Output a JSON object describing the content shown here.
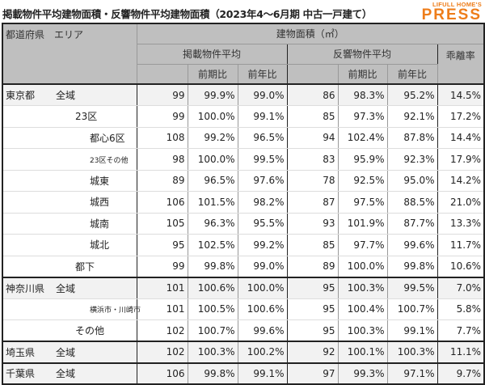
{
  "title": "掲載物件平均建物面積・反響物件平均建物面積（2023年4～6月期 中古一戸建て）",
  "logo": {
    "line1": "LIFULL HOME'S",
    "line2": "PRESS",
    "color": "#ee7d1a"
  },
  "header": {
    "region": "都道府県　エリア",
    "area": "建物面積（㎡）",
    "listed": "掲載物件平均",
    "response": "反響物件平均",
    "gap": "乖離率",
    "qoq": "前期比",
    "yoy": "前年比"
  },
  "rows": [
    {
      "pref": "東京都",
      "area": "全域",
      "level": 0,
      "v": [
        "99",
        "99.9%",
        "99.0%",
        "86",
        "98.3%",
        "95.2%",
        "14.5%"
      ]
    },
    {
      "pref": "",
      "area": "23区",
      "level": 1,
      "v": [
        "99",
        "100.0%",
        "99.1%",
        "85",
        "97.3%",
        "92.1%",
        "17.2%"
      ]
    },
    {
      "pref": "",
      "area": "都心6区",
      "level": 2,
      "v": [
        "108",
        "99.2%",
        "96.5%",
        "94",
        "102.4%",
        "87.8%",
        "14.4%"
      ]
    },
    {
      "pref": "",
      "area": "23区その他",
      "level": 2,
      "v": [
        "98",
        "100.0%",
        "99.5%",
        "83",
        "95.9%",
        "92.3%",
        "17.9%"
      ]
    },
    {
      "pref": "",
      "area": "城東",
      "level": 2,
      "v": [
        "89",
        "96.5%",
        "97.6%",
        "78",
        "92.5%",
        "95.0%",
        "14.2%"
      ]
    },
    {
      "pref": "",
      "area": "城西",
      "level": 2,
      "v": [
        "106",
        "101.5%",
        "98.2%",
        "87",
        "97.5%",
        "88.5%",
        "21.0%"
      ]
    },
    {
      "pref": "",
      "area": "城南",
      "level": 2,
      "v": [
        "105",
        "96.3%",
        "95.5%",
        "93",
        "101.9%",
        "87.7%",
        "13.3%"
      ]
    },
    {
      "pref": "",
      "area": "城北",
      "level": 2,
      "v": [
        "95",
        "102.5%",
        "99.2%",
        "85",
        "97.7%",
        "99.6%",
        "11.7%"
      ]
    },
    {
      "pref": "",
      "area": "都下",
      "level": 1,
      "v": [
        "99",
        "99.8%",
        "99.0%",
        "89",
        "100.0%",
        "99.8%",
        "10.6%"
      ]
    },
    {
      "pref": "神奈川県",
      "area": "全域",
      "level": 0,
      "v": [
        "101",
        "100.6%",
        "100.0%",
        "95",
        "100.3%",
        "99.5%",
        "7.0%"
      ]
    },
    {
      "pref": "",
      "area": "横浜市・川崎市",
      "level": 2,
      "v": [
        "101",
        "100.5%",
        "100.6%",
        "95",
        "100.4%",
        "100.7%",
        "5.8%"
      ]
    },
    {
      "pref": "",
      "area": "その他",
      "level": 1,
      "v": [
        "102",
        "100.7%",
        "99.6%",
        "95",
        "100.3%",
        "99.1%",
        "7.7%"
      ]
    },
    {
      "pref": "埼玉県",
      "area": "全域",
      "level": 0,
      "v": [
        "102",
        "100.3%",
        "100.2%",
        "92",
        "100.1%",
        "100.3%",
        "11.1%"
      ]
    },
    {
      "pref": "千葉県",
      "area": "全域",
      "level": 0,
      "v": [
        "106",
        "99.8%",
        "99.1%",
        "97",
        "99.3%",
        "97.1%",
        "9.7%"
      ]
    }
  ]
}
